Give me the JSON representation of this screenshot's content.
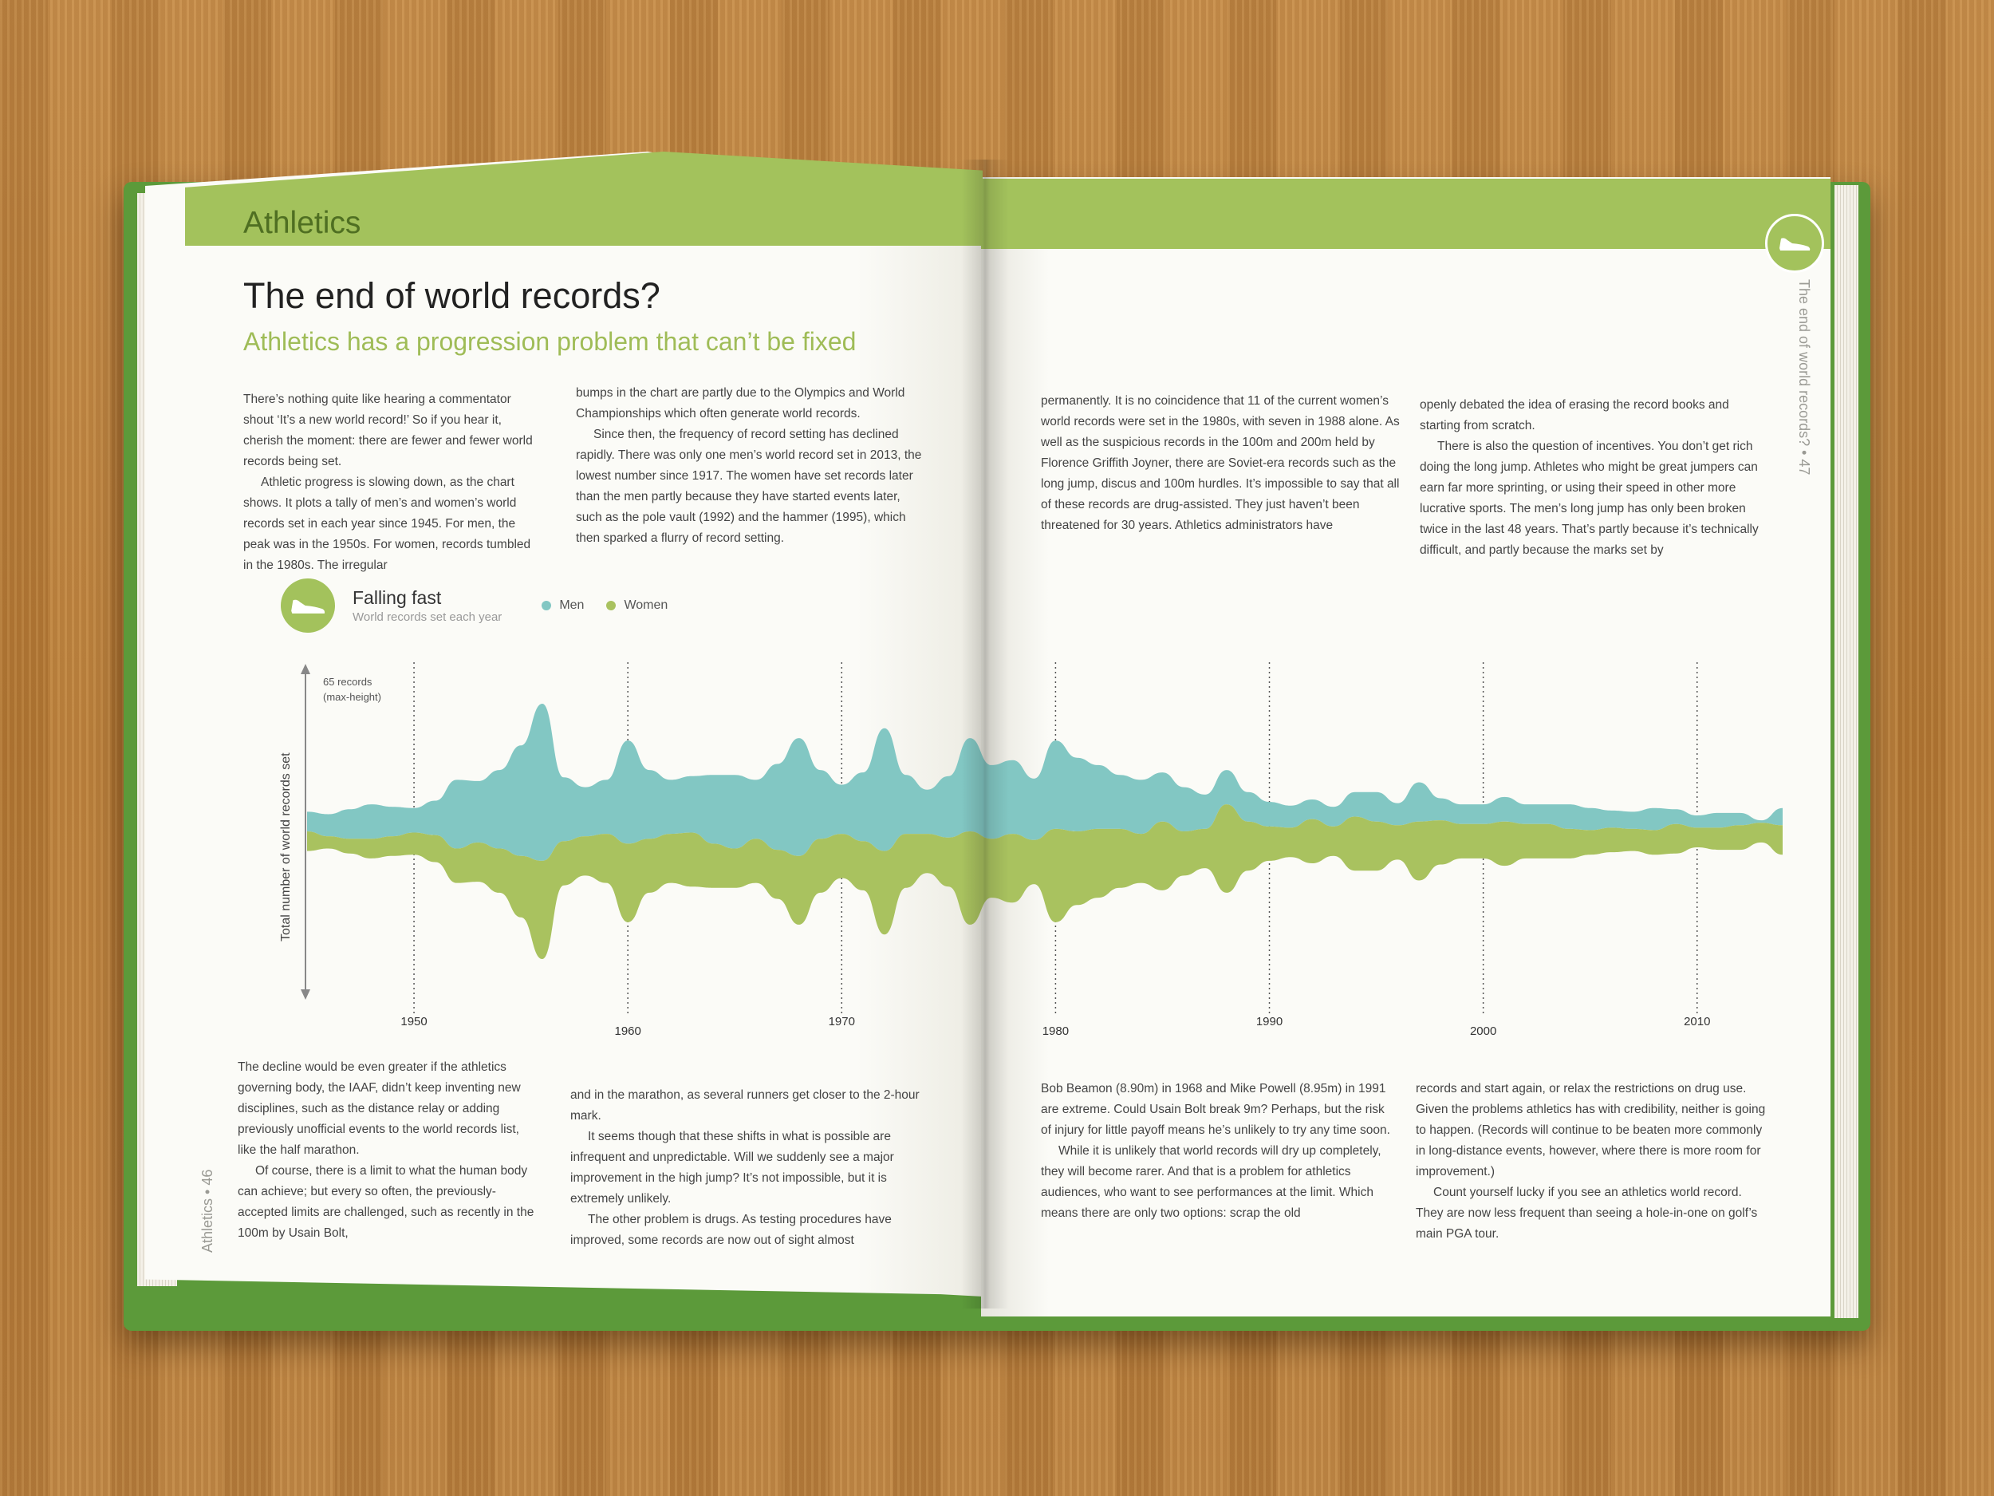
{
  "left_page": {
    "section": "Athletics",
    "headline": "The end of world records?",
    "subhead": "Athletics has a progression problem that can’t be fixed",
    "col1": [
      "There’s nothing quite like hearing a commentator shout ‘It’s a new world record!’ So if you hear it, cherish the moment: there are fewer and fewer world records being set.",
      "Athletic progress is slowing down, as the chart shows. It plots a tally of men’s and women’s world records set in each year since 1945. For men, the peak was in the 1950s. For women, records tumbled in the 1980s. The irregular"
    ],
    "col2": [
      "bumps in the chart are partly due to the Olympics and World Championships which often generate world records.",
      "Since then, the frequency of record setting has declined rapidly. There was only one men’s world record set in 2013, the lowest number since 1917. The women have set records later than the men partly because they have started events later, such as the pole vault (1992) and the hammer (1995), which then sparked a flurry of record setting."
    ],
    "col3": [
      "The decline would be even greater if the athletics governing body, the IAAF, didn’t keep inventing new disciplines, such as the distance relay or adding previously unofficial events to the world records list, like the half marathon.",
      "Of course, there is a limit to what the human body can achieve; but every so often, the previously-accepted limits are challenged, such as recently in the 100m by Usain Bolt,"
    ],
    "col4": [
      "and in the marathon, as several runners get closer to the 2-hour mark.",
      "It seems though that these shifts in what is possible are infrequent and unpredictable. Will we suddenly see a major improvement in the high jump? It’s not impossible, but it is extremely unlikely.",
      "The other problem is drugs. As testing procedures have improved, some records are now out of sight almost"
    ],
    "folio": "Athletics • 46"
  },
  "right_page": {
    "col1": [
      "permanently. It is no coincidence that 11 of the current women’s world records were set in the 1980s, with seven in 1988 alone. As well as the suspicious records in the 100m and 200m held by Florence Griffith Joyner, there are Soviet-era records such as the long jump, discus and 100m hurdles. It’s impossible to say that all of these records are drug-assisted. They just haven’t been threatened for 30 years. Athletics administrators have"
    ],
    "col2": [
      "openly debated the idea of erasing the record books and starting from scratch.",
      "There is also the question of incentives. You don’t get rich doing the long jump. Athletes who might be great jumpers can earn far more sprinting, or using their speed in other more lucrative sports. The men’s long jump has only been broken twice in the last 48 years. That’s partly because it’s technically difficult, and partly because the marks set by"
    ],
    "col3": [
      "Bob Beamon (8.90m) in 1968 and Mike Powell (8.95m) in 1991 are extreme. Could Usain Bolt break 9m? Perhaps, but the risk of injury for little payoff means he’s unlikely to try any time soon.",
      "While it is unlikely that world records will dry up completely, they will become rarer. And that is a problem for athletics audiences, who want to see performances at the limit. Which means there are only two options: scrap the old"
    ],
    "col4": [
      "records and start again, or relax the restrictions on drug use. Given the problems athletics has with credibility, neither is going to happen. (Records will continue to be beaten more commonly in long-distance events, however, where there is more room for improvement.)",
      "Count yourself lucky if you see an athletics world record. They are now less frequent than seeing a hole-in-one on golf’s main PGA tour."
    ],
    "side_title": "The end of world records? • 47"
  },
  "icons": {
    "chart_icon": "shoe-icon",
    "tab_icon": "shoe-icon"
  },
  "colors": {
    "men": "#82c7c3",
    "women": "#a9c25f",
    "band": "#a3c25c",
    "heading_green": "#4f6f22"
  },
  "chart_data": {
    "type": "area",
    "title": "Falling fast",
    "subtitle": "World records set each year",
    "ylabel": "Total number of world records set",
    "scale_note": [
      "65 records",
      "(max-height)"
    ],
    "x_ticks": [
      1950,
      1960,
      1970,
      1980,
      1990,
      2000,
      2010
    ],
    "x": [
      1945,
      1946,
      1947,
      1948,
      1949,
      1950,
      1951,
      1952,
      1953,
      1954,
      1955,
      1956,
      1957,
      1958,
      1959,
      1960,
      1961,
      1962,
      1963,
      1964,
      1965,
      1966,
      1967,
      1968,
      1969,
      1970,
      1971,
      1972,
      1973,
      1974,
      1975,
      1976,
      1977,
      1978,
      1979,
      1980,
      1981,
      1982,
      1983,
      1984,
      1985,
      1986,
      1987,
      1988,
      1989,
      1990,
      1991,
      1992,
      1993,
      1994,
      1995,
      1996,
      1997,
      1998,
      1999,
      2000,
      2001,
      2002,
      2003,
      2004,
      2005,
      2006,
      2007,
      2008,
      2009,
      2010,
      2011,
      2012,
      2013,
      2014
    ],
    "series": [
      {
        "name": "Men",
        "values": [
          8,
          9,
          12,
          14,
          12,
          10,
          14,
          28,
          25,
          32,
          45,
          64,
          26,
          20,
          22,
          42,
          28,
          22,
          23,
          28,
          30,
          24,
          35,
          48,
          28,
          20,
          28,
          50,
          24,
          18,
          25,
          38,
          30,
          30,
          25,
          36,
          30,
          26,
          22,
          22,
          20,
          18,
          14,
          14,
          12,
          10,
          9,
          8,
          8,
          10,
          12,
          9,
          16,
          9,
          8,
          8,
          10,
          8,
          8,
          10,
          9,
          7,
          7,
          9,
          6,
          5,
          6,
          5,
          1,
          7
        ]
      },
      {
        "name": "Women",
        "values": [
          8,
          5,
          6,
          8,
          8,
          9,
          11,
          14,
          16,
          18,
          25,
          40,
          18,
          16,
          20,
          32,
          22,
          20,
          22,
          18,
          16,
          18,
          20,
          28,
          22,
          18,
          20,
          34,
          22,
          16,
          20,
          38,
          24,
          28,
          18,
          38,
          30,
          28,
          24,
          20,
          28,
          18,
          16,
          36,
          20,
          14,
          12,
          18,
          12,
          22,
          20,
          14,
          24,
          18,
          14,
          14,
          18,
          14,
          14,
          12,
          10,
          10,
          9,
          10,
          12,
          8,
          9,
          10,
          8,
          12
        ]
      }
    ]
  }
}
